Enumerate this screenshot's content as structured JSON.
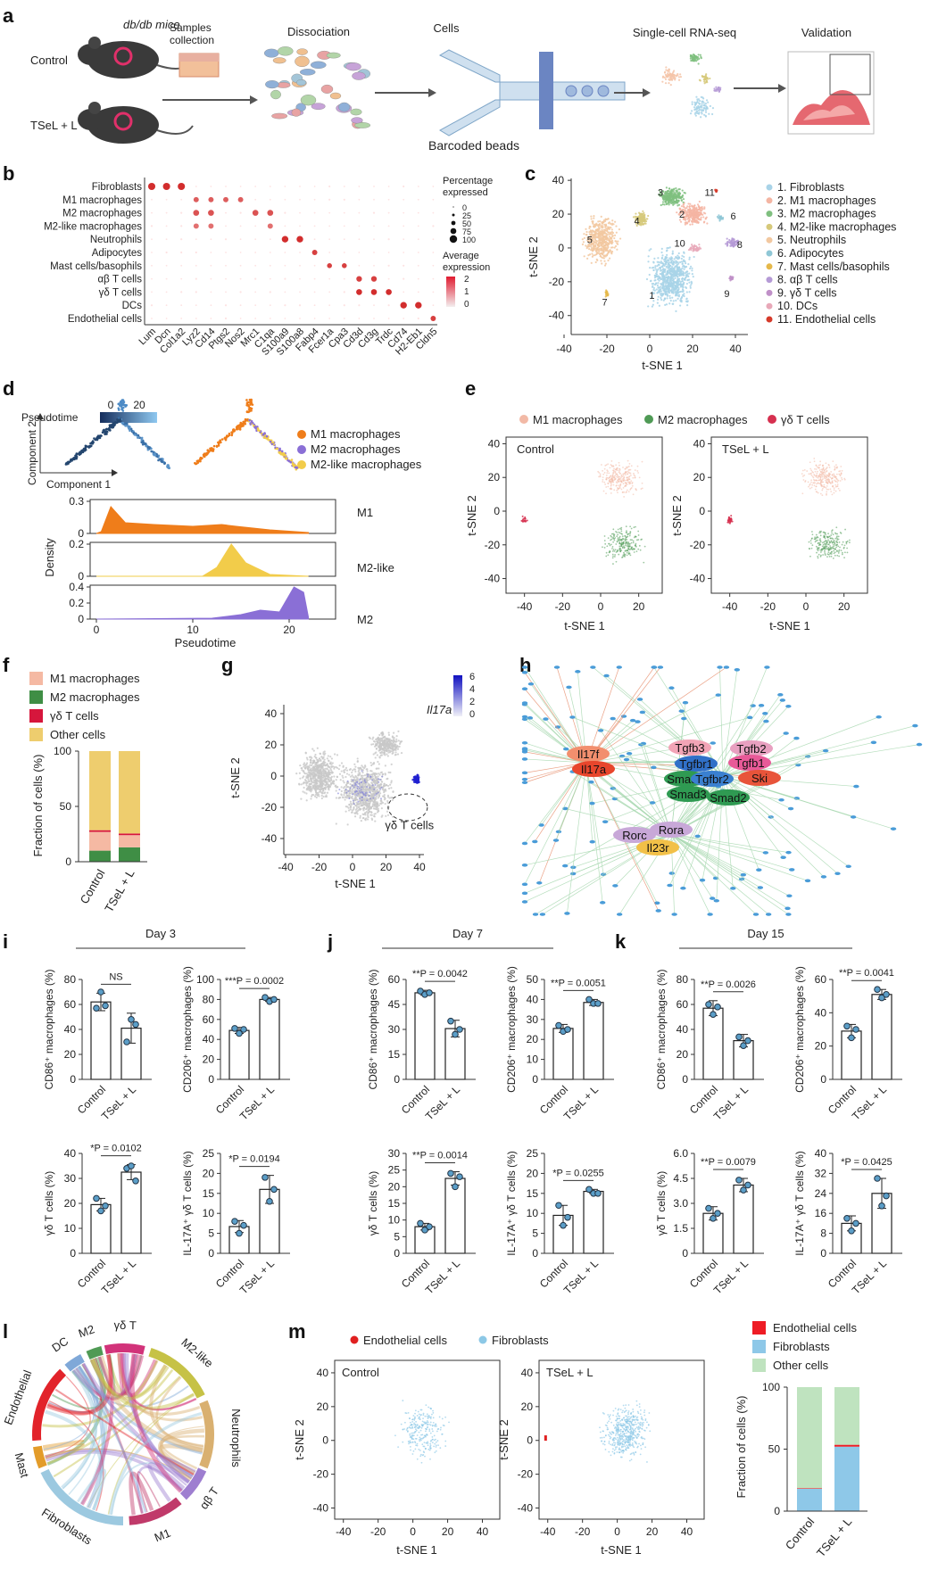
{
  "panels": {
    "a": "a",
    "b": "b",
    "c": "c",
    "d": "d",
    "e": "e",
    "f": "f",
    "g": "g",
    "h": "h",
    "i": "i",
    "j": "j",
    "k": "k",
    "l": "l",
    "m": "m"
  },
  "panel_a": {
    "mice_title": "db/db mice",
    "groups": [
      "Control",
      "TSeL + L"
    ],
    "steps": [
      "Samples collection",
      "Dissociation",
      "Cells",
      "Single-cell RNA-seq",
      "Validation"
    ],
    "beads_label": "Barcoded beads"
  },
  "panel_b": {
    "cell_types": [
      "Fibroblasts",
      "M1 macrophages",
      "M2 macrophages",
      "M2-like macrophages",
      "Neutrophils",
      "Adipocytes",
      "Mast cells/basophils",
      "αβ T cells",
      "γδ T cells",
      "DCs",
      "Endothelial cells"
    ],
    "genes": [
      "Lum",
      "Dcn",
      "Col1a2",
      "Lyz2",
      "Cd14",
      "Ptgs2",
      "Nos2",
      "Mrc1",
      "C1qa",
      "S100a9",
      "S100a8",
      "Fabp4",
      "Fcer1a",
      "Cpa3",
      "Cd3d",
      "Cd3g",
      "Trdc",
      "Cd74",
      "H2-Eb1",
      "Cldn5"
    ],
    "size_legend_title": "Percentage expressed",
    "size_legend_values": [
      "0",
      "25",
      "50",
      "75",
      "100"
    ],
    "color_legend_title": "Average expression",
    "color_legend_ticks": [
      "2",
      "1",
      "0"
    ]
  },
  "panel_c": {
    "xlabel": "t-SNE 1",
    "ylabel": "t-SNE 2",
    "xticks": [
      "-40",
      "-20",
      "0",
      "20",
      "40"
    ],
    "yticks": [
      "40",
      "20",
      "0",
      "-20",
      "-40"
    ],
    "legend": [
      "1. Fibroblasts",
      "2. M1 macrophages",
      "3. M2 macrophages",
      "4. M2-like macrophages",
      "5. Neutrophils",
      "6. Adipocytes",
      "7. Mast cells/basophils",
      "8. αβ T cells",
      "9. γδ T cells",
      "10. DCs",
      "11. Endothelial cells"
    ],
    "colors": [
      "#a8d3e8",
      "#f4b5a3",
      "#7fbf7f",
      "#d6c97a",
      "#f2c8a0",
      "#8fc7d6",
      "#e5b84a",
      "#b59ad6",
      "#c090c8",
      "#e8a8b8",
      "#d63a2a"
    ],
    "cluster_labels": [
      "1",
      "2",
      "3",
      "4",
      "5",
      "6",
      "7",
      "8",
      "9",
      "10",
      "11"
    ]
  },
  "panel_d": {
    "pseudotime_label": "Pseudotime",
    "pseudotime_ticks": [
      "0",
      "20"
    ],
    "component_x": "Component 1",
    "component_y": "Component 2",
    "legend": [
      "M1 macrophages",
      "M2 macrophages",
      "M2-like macrophages"
    ],
    "legend_colors": [
      "#ef7d1a",
      "#8a6fd6",
      "#f2cc4a"
    ],
    "density_label": "Density",
    "xlabel": "Pseudotime",
    "xticks": [
      "0",
      "10",
      "20"
    ],
    "tracks": [
      "M1",
      "M2-like",
      "M2"
    ],
    "track_yticks": [
      [
        "0.3",
        "0"
      ],
      [
        "0.2",
        "0"
      ],
      [
        "0.4",
        "0.2",
        "0"
      ]
    ]
  },
  "panel_e": {
    "legend": [
      "M1 macrophages",
      "M2 macrophages",
      "γδ T cells"
    ],
    "legend_colors": [
      "#f2b9a6",
      "#4f9a55",
      "#d6304f"
    ],
    "titles": [
      "Control",
      "TSeL + L"
    ],
    "xlabel": "t-SNE 1",
    "ylabel": "t-SNE 2",
    "xticks": [
      "-40",
      "-20",
      "0",
      "20"
    ],
    "yticks": [
      "40",
      "20",
      "0",
      "-20",
      "-40"
    ]
  },
  "panel_f": {
    "legend": [
      "M1 macrophages",
      "M2 macrophages",
      "γδ T cells",
      "Other cells"
    ],
    "colors": [
      "#f5b9a3",
      "#3f8e45",
      "#d6163c",
      "#eecd6e"
    ],
    "ylabel": "Fraction of cells (%)",
    "yticks": [
      "100",
      "50",
      "0"
    ],
    "categories": [
      "Control",
      "TSeL + L"
    ]
  },
  "panel_g": {
    "gene": "Il17a",
    "color_ticks": [
      "6",
      "4",
      "2",
      "0"
    ],
    "xlabel": "t-SNE 1",
    "ylabel": "t-SNE 2",
    "xticks": [
      "-40",
      "-20",
      "0",
      "20",
      "40"
    ],
    "yticks": [
      "40",
      "20",
      "0",
      "-20",
      "-40"
    ],
    "annotation": "γδ T cells"
  },
  "panel_h": {
    "nodes": [
      "Il17f",
      "Il17a",
      "Tgfb3",
      "Tgfb2",
      "Tgfbr1",
      "Tgfb1",
      "Smad4",
      "Tgfbr2",
      "Ski",
      "Smad3",
      "Smad2",
      "Rorc",
      "Rora",
      "Il23r"
    ]
  },
  "panel_ijk": {
    "days": [
      "Day 3",
      "Day 7",
      "Day 15"
    ],
    "x_categories": [
      "Control",
      "TSeL + L"
    ],
    "ylabels": [
      "CD86⁺ macrophages (%)",
      "CD206⁺ macrophages (%)",
      "γδ T cells (%)",
      "IL-17A⁺ γδ T cells (%)"
    ],
    "i_pvals": [
      "NS",
      "***P = 0.0002",
      "*P = 0.0102",
      "*P = 0.0194"
    ],
    "j_pvals": [
      "**P = 0.0042",
      "**P = 0.0051",
      "**P = 0.0014",
      "*P = 0.0255"
    ],
    "k_pvals": [
      "**P = 0.0026",
      "**P = 0.0041",
      "**P = 0.0079",
      "*P = 0.0425"
    ],
    "i_yticks": [
      [
        "0",
        "20",
        "40",
        "60",
        "80"
      ],
      [
        "0",
        "20",
        "40",
        "60",
        "80",
        "100"
      ],
      [
        "0",
        "10",
        "20",
        "30",
        "40"
      ],
      [
        "0",
        "5",
        "10",
        "15",
        "20",
        "25"
      ]
    ],
    "j_yticks": [
      [
        "0",
        "15",
        "30",
        "45",
        "60"
      ],
      [
        "0",
        "10",
        "20",
        "30",
        "40",
        "50"
      ],
      [
        "0",
        "5",
        "10",
        "15",
        "20",
        "25",
        "30"
      ],
      [
        "0",
        "5",
        "10",
        "15",
        "20",
        "25"
      ]
    ],
    "k_yticks": [
      [
        "0",
        "20",
        "40",
        "60",
        "80"
      ],
      [
        "0",
        "20",
        "40",
        "60"
      ],
      [
        "0",
        "1.5",
        "3.0",
        "4.5",
        "6.0"
      ],
      [
        "0",
        "8",
        "16",
        "24",
        "32",
        "40"
      ]
    ]
  },
  "panel_l": {
    "sectors": [
      "γδ T",
      "M2-like",
      "Neutrophils",
      "αβ T",
      "M1",
      "Fibroblasts",
      "Mast",
      "Endothelial",
      "DC",
      "M2"
    ],
    "sector_colors": [
      "#d2337a",
      "#c6c246",
      "#d9b070",
      "#9e7ed0",
      "#c03a6a",
      "#9cc9e0",
      "#e39c2a",
      "#e2232a",
      "#7fa8d8",
      "#4f9a55"
    ]
  },
  "panel_m": {
    "legend": [
      "Endothelial cells",
      "Fibroblasts"
    ],
    "legend_colors": [
      "#e02020",
      "#8cc8e6"
    ],
    "titles": [
      "Control",
      "TSeL + L"
    ],
    "xlabel": "t-SNE 1",
    "ylabel": "t-SNE 2",
    "xticks": [
      "-40",
      "-20",
      "0",
      "20",
      "40"
    ],
    "yticks": [
      "40",
      "20",
      "0",
      "-20",
      "-40"
    ],
    "bar_legend": [
      "Endothelial cells",
      "Fibroblasts",
      "Other cells"
    ],
    "bar_colors": [
      "#ee1c25",
      "#8ec8e8",
      "#bfe3bf"
    ],
    "bar_ylabel": "Fraction of cells (%)",
    "bar_yticks": [
      "100",
      "50",
      "0"
    ],
    "bar_categories": [
      "Control",
      "TSeL + L"
    ]
  },
  "chart_data": [
    {
      "type": "scatter",
      "panel": "b",
      "description_of_encoding": "dot size = percentage expressed, color = average expression",
      "categories_y": [
        "Fibroblasts",
        "M1 macrophages",
        "M2 macrophages",
        "M2-like macrophages",
        "Neutrophils",
        "Adipocytes",
        "Mast cells/basophils",
        "αβ T cells",
        "γδ T cells",
        "DCs",
        "Endothelial cells"
      ],
      "categories_x": [
        "Lum",
        "Dcn",
        "Col1a2",
        "Lyz2",
        "Cd14",
        "Ptgs2",
        "Nos2",
        "Mrc1",
        "C1qa",
        "S100a9",
        "S100a8",
        "Fabp4",
        "Fcer1a",
        "Cpa3",
        "Cd3d",
        "Cd3g",
        "Trdc",
        "Cd74",
        "H2-Eb1",
        "Cldn5"
      ],
      "highlights": [
        {
          "row": 0,
          "cols": [
            0,
            1,
            2
          ],
          "pct": 90,
          "expr": 2
        },
        {
          "row": 1,
          "cols": [
            3,
            4,
            5,
            6
          ],
          "pct": 60,
          "expr": 1.5
        },
        {
          "row": 2,
          "cols": [
            3,
            4,
            7,
            8
          ],
          "pct": 70,
          "expr": 1.6
        },
        {
          "row": 3,
          "cols": [
            3,
            4,
            8
          ],
          "pct": 60,
          "expr": 1.3
        },
        {
          "row": 4,
          "cols": [
            9,
            10
          ],
          "pct": 80,
          "expr": 2
        },
        {
          "row": 5,
          "cols": [
            11
          ],
          "pct": 60,
          "expr": 1.8
        },
        {
          "row": 6,
          "cols": [
            12,
            13
          ],
          "pct": 55,
          "expr": 1.8
        },
        {
          "row": 7,
          "cols": [
            14,
            15
          ],
          "pct": 65,
          "expr": 1.8
        },
        {
          "row": 8,
          "cols": [
            14,
            15,
            16
          ],
          "pct": 70,
          "expr": 2
        },
        {
          "row": 9,
          "cols": [
            17,
            18
          ],
          "pct": 80,
          "expr": 2
        },
        {
          "row": 10,
          "cols": [
            19
          ],
          "pct": 60,
          "expr": 1.8
        }
      ]
    },
    {
      "type": "bar",
      "panel": "f",
      "categories": [
        "Control",
        "TSeL + L"
      ],
      "series": [
        {
          "name": "M2 macrophages",
          "values": [
            10,
            13
          ]
        },
        {
          "name": "M1 macrophages",
          "values": [
            17,
            11
          ]
        },
        {
          "name": "γδ T cells",
          "values": [
            1.5,
            1.5
          ]
        },
        {
          "name": "Other cells",
          "values": [
            71.5,
            74.5
          ]
        }
      ],
      "ylabel": "Fraction of cells (%)",
      "ylim": [
        0,
        100
      ]
    },
    {
      "type": "bar",
      "panel": "i",
      "title": "Day 3",
      "subplots": [
        {
          "ylabel": "CD86⁺ macrophages (%)",
          "ylim": [
            0,
            80
          ],
          "values": [
            62,
            41
          ],
          "sd": [
            7,
            12
          ],
          "points": [
            [
              57,
              70,
              59
            ],
            [
              30,
              48,
              44
            ]
          ],
          "p": "NS"
        },
        {
          "ylabel": "CD206⁺ macrophages (%)",
          "ylim": [
            0,
            100
          ],
          "values": [
            49,
            80
          ],
          "sd": [
            3,
            2
          ],
          "points": [
            [
              51,
              46,
              50
            ],
            [
              82,
              78,
              80
            ]
          ],
          "p": "***P = 0.0002"
        },
        {
          "ylabel": "γδ T cells (%)",
          "ylim": [
            0,
            40
          ],
          "values": [
            19.5,
            32.5
          ],
          "sd": [
            2.5,
            3
          ],
          "points": [
            [
              22,
              17,
              19
            ],
            [
              34,
              35,
              29
            ]
          ],
          "p": "*P = 0.0102"
        },
        {
          "ylabel": "IL-17A⁺ γδ T cells (%)",
          "ylim": [
            0,
            25
          ],
          "values": [
            6.7,
            16
          ],
          "sd": [
            1.5,
            3.5
          ],
          "points": [
            [
              8,
              5,
              7
            ],
            [
              19,
              13,
              16
            ]
          ],
          "p": "*P = 0.0194"
        }
      ]
    },
    {
      "type": "bar",
      "panel": "j",
      "title": "Day 7",
      "subplots": [
        {
          "ylabel": "CD86⁺ macrophages (%)",
          "ylim": [
            0,
            60
          ],
          "values": [
            52,
            30.5
          ],
          "sd": [
            1.5,
            5
          ],
          "points": [
            [
              53,
              51,
              52
            ],
            [
              35,
              27,
              30
            ]
          ],
          "p": "**P = 0.0042"
        },
        {
          "ylabel": "CD206⁺ macrophages (%)",
          "ylim": [
            0,
            50
          ],
          "values": [
            25.5,
            38.5
          ],
          "sd": [
            2,
            1.5
          ],
          "points": [
            [
              27,
              24,
              25
            ],
            [
              40,
              38,
              38
            ]
          ],
          "p": "**P = 0.0051"
        },
        {
          "ylabel": "γδ T cells (%)",
          "ylim": [
            0,
            30
          ],
          "values": [
            8,
            22.5
          ],
          "sd": [
            1,
            2
          ],
          "points": [
            [
              9,
              7,
              8
            ],
            [
              24,
              20,
              23
            ]
          ],
          "p": "**P = 0.0014"
        },
        {
          "ylabel": "IL-17A⁺ γδ T cells (%)",
          "ylim": [
            0,
            25
          ],
          "values": [
            9.5,
            15.5
          ],
          "sd": [
            2.5,
            0.5
          ],
          "points": [
            [
              12,
              7,
              9
            ],
            [
              16,
              15,
              15
            ]
          ],
          "p": "*P = 0.0255"
        }
      ]
    },
    {
      "type": "bar",
      "panel": "k",
      "title": "Day 15",
      "subplots": [
        {
          "ylabel": "CD86⁺ macrophages (%)",
          "ylim": [
            0,
            80
          ],
          "values": [
            57,
            31
          ],
          "sd": [
            6,
            5
          ],
          "points": [
            [
              60,
              52,
              58
            ],
            [
              34,
              27,
              31
            ]
          ],
          "p": "**P = 0.0026"
        },
        {
          "ylabel": "CD206⁺ macrophages (%)",
          "ylim": [
            0,
            60
          ],
          "values": [
            29,
            51
          ],
          "sd": [
            4,
            3
          ],
          "points": [
            [
              32,
              25,
              30
            ],
            [
              54,
              49,
              51
            ]
          ],
          "p": "**P = 0.0041"
        },
        {
          "ylabel": "γδ T cells (%)",
          "ylim": [
            0,
            6
          ],
          "values": [
            2.4,
            4.1
          ],
          "sd": [
            0.4,
            0.4
          ],
          "points": [
            [
              2.7,
              2.1,
              2.4
            ],
            [
              4.4,
              3.8,
              4.1
            ]
          ],
          "p": "**P = 0.0079"
        },
        {
          "ylabel": "IL-17A⁺ γδ T cells (%)",
          "ylim": [
            0,
            40
          ],
          "values": [
            12,
            24
          ],
          "sd": [
            3,
            6
          ],
          "points": [
            [
              14,
              9,
              12
            ],
            [
              30,
              19,
              23
            ]
          ],
          "p": "*P = 0.0425"
        }
      ]
    },
    {
      "type": "bar",
      "panel": "m",
      "categories": [
        "Control",
        "TSeL + L"
      ],
      "series": [
        {
          "name": "Fibroblasts",
          "values": [
            18,
            52
          ]
        },
        {
          "name": "Endothelial cells",
          "values": [
            0.5,
            1.5
          ]
        },
        {
          "name": "Other cells",
          "values": [
            81.5,
            46.5
          ]
        }
      ],
      "ylabel": "Fraction of cells (%)",
      "ylim": [
        0,
        100
      ]
    }
  ]
}
